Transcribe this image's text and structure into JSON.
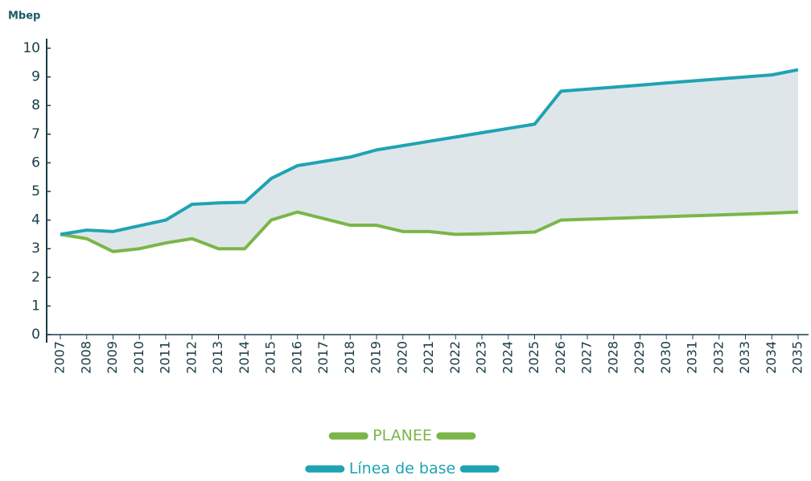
{
  "chart_data": {
    "type": "line",
    "y_label": "Mbep",
    "categories": [
      "2007",
      "2008",
      "2009",
      "2010",
      "2011",
      "2012",
      "2013",
      "2014",
      "2015",
      "2016",
      "2017",
      "2018",
      "2019",
      "2020",
      "2021",
      "2022",
      "2023",
      "2024",
      "2025",
      "2026",
      "2027",
      "2028",
      "2029",
      "2030",
      "2031",
      "2032",
      "2033",
      "2034",
      "2035"
    ],
    "series": [
      {
        "name": "PLANEE",
        "color": "#7ab648",
        "values": [
          3.5,
          3.35,
          2.9,
          3.0,
          3.2,
          3.35,
          3.0,
          3.0,
          4.0,
          4.28,
          4.05,
          3.82,
          3.82,
          3.6,
          3.6,
          3.5,
          3.52,
          3.55,
          3.58,
          4.0,
          4.03,
          4.06,
          4.09,
          4.12,
          4.15,
          4.18,
          4.21,
          4.24,
          4.28
        ]
      },
      {
        "name": "Línea de base",
        "color": "#1fa3b3",
        "values": [
          3.5,
          3.65,
          3.6,
          3.8,
          4.0,
          4.55,
          4.6,
          4.62,
          5.45,
          5.9,
          6.05,
          6.2,
          6.45,
          6.6,
          6.75,
          6.9,
          7.05,
          7.2,
          7.35,
          8.5,
          8.57,
          8.64,
          8.71,
          8.79,
          8.86,
          8.93,
          9.0,
          9.07,
          9.25
        ]
      }
    ],
    "fill_between_color": "#dfe6ea",
    "ylim": [
      0,
      10
    ],
    "yticks": [
      0,
      1,
      2,
      3,
      4,
      5,
      6,
      7,
      8,
      9,
      10
    ],
    "legend": "bottom"
  }
}
